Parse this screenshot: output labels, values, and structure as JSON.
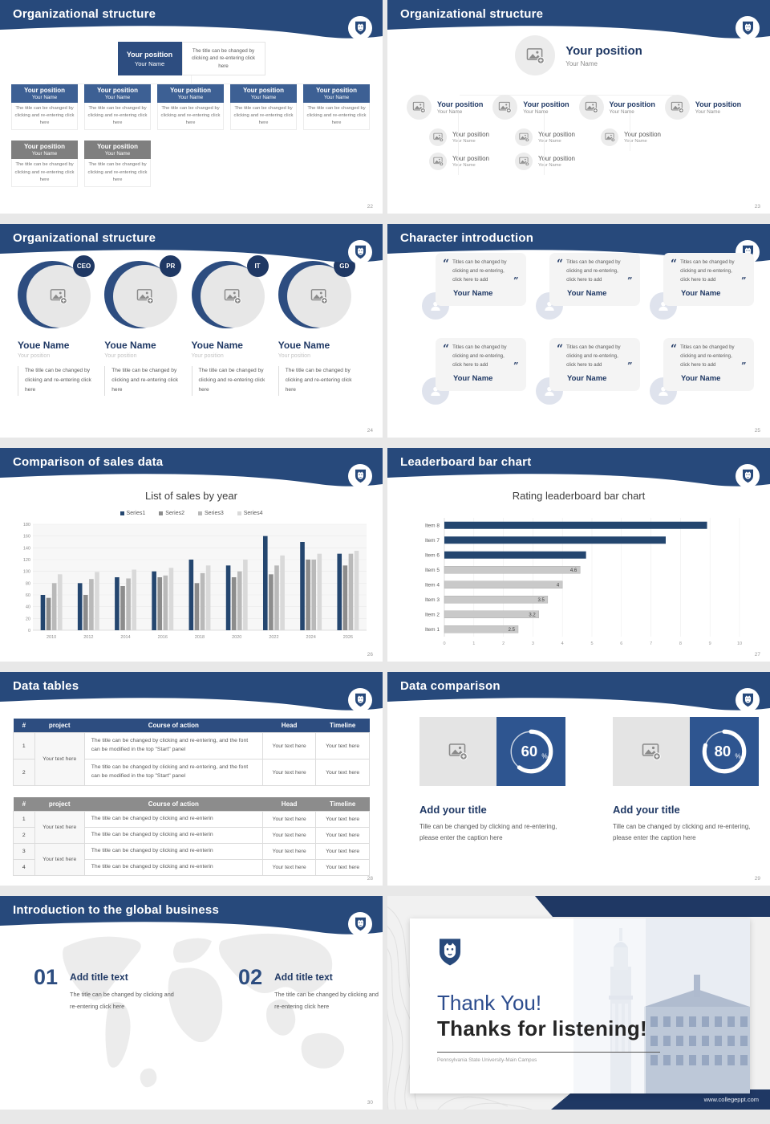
{
  "colors": {
    "header_blue": "#27497b",
    "navy": "#1f3864",
    "box_blue": "#3d6094",
    "box_blue_dark": "#2d4d80",
    "box_gray": "#7f7f7f",
    "accent_blue": "#2e5590",
    "bar_blue": "#24466f",
    "bar_gray": "#c9c9c9"
  },
  "slides": {
    "s1": {
      "title": "Organizational structure",
      "page": "22",
      "position": "Your position",
      "name": "Your Name",
      "desc": "The title can be changed by clicking and re-entering click here"
    },
    "s2": {
      "title": "Organizational structure",
      "page": "23",
      "position": "Your position",
      "name": "Your Name"
    },
    "s3": {
      "title": "Organizational structure",
      "page": "24",
      "name": "Youe Name",
      "position": "Your position",
      "desc": "The title can be changed by clicking and re-entering click here",
      "badges": [
        "CEO",
        "PR",
        "IT",
        "GD"
      ]
    },
    "s4": {
      "title": "Character introduction",
      "page": "25",
      "quote": "Titles can be changed by clicking and re-entering, click here to add",
      "name": "Your Name"
    },
    "s5": {
      "title": "Comparison of sales data",
      "page": "26"
    },
    "s6": {
      "title": "Leaderboard bar chart",
      "page": "27"
    },
    "s7": {
      "title": "Data tables",
      "page": "28",
      "headers": [
        "#",
        "project",
        "Course of action",
        "Head",
        "Timeline"
      ],
      "cell": "Your text here",
      "project_cell": "Your text here",
      "course_long": "The title can be changed by clicking and re-entering, and the font can be modified in the top \"Start\" panel",
      "course_short": "The title can be changed by clicking and re-enterin",
      "t1_nums": [
        "1",
        "2"
      ],
      "t2_nums": [
        "1",
        "2",
        "3",
        "4"
      ]
    },
    "s8": {
      "title": "Data comparison",
      "page": "29",
      "item_title": "Add your title",
      "caption": "Tille can be changed by clicking and re-entering, please enter the caption here",
      "percents": [
        {
          "value": "60",
          "unit": "%"
        },
        {
          "value": "80",
          "unit": "%"
        }
      ]
    },
    "s9": {
      "title": "Introduction to the global business",
      "page": "30",
      "steps": [
        {
          "num": "01",
          "heading": "Add title text",
          "desc": "The title can be changed by clicking and re-entering click here"
        },
        {
          "num": "02",
          "heading": "Add title text",
          "desc": "The title can be changed by clicking and re-entering click here"
        }
      ]
    },
    "s10": {
      "title_line1": "Thank You!",
      "title_line2": "Thanks for listening!",
      "subtitle": "Pennsylvania State University-Main Campus",
      "url": "www.collegeppt.com"
    }
  },
  "chart_data": [
    {
      "type": "bar",
      "slide": "s5",
      "title": "List of sales by year",
      "categories": [
        "2010",
        "2012",
        "2014",
        "2016",
        "2018",
        "2020",
        "2022",
        "2024",
        "2026"
      ],
      "series": [
        {
          "name": "Series1",
          "values": [
            60,
            80,
            90,
            100,
            120,
            110,
            160,
            150,
            130
          ]
        },
        {
          "name": "Series2",
          "values": [
            55,
            60,
            75,
            90,
            80,
            90,
            95,
            120,
            110
          ]
        },
        {
          "name": "Series3",
          "values": [
            80,
            87,
            88,
            93,
            97,
            100,
            110,
            120,
            130
          ]
        },
        {
          "name": "Series4",
          "values": [
            95,
            99,
            103,
            106,
            110,
            120,
            127,
            130,
            135
          ]
        }
      ],
      "xlabel": "",
      "ylabel": "",
      "ylim": [
        0,
        180
      ],
      "ytick": 20,
      "grid": true,
      "legend_position": "top",
      "colors": [
        "#24466f",
        "#8c8c8c",
        "#b9b9b9",
        "#d9d9d9"
      ]
    },
    {
      "type": "bar",
      "orientation": "horizontal",
      "slide": "s6",
      "title": "Rating leaderboard bar chart",
      "categories": [
        "Item 8",
        "Item 7",
        "Item 6",
        "Item 5",
        "Item 4",
        "Item 3",
        "Item 2",
        "Item 1"
      ],
      "values": [
        8.9,
        7.5,
        4.8,
        4.6,
        4,
        3.5,
        3.2,
        2.5
      ],
      "data_labels": [
        null,
        null,
        null,
        "4.6",
        "4",
        "3.5",
        "3.2",
        "2.5"
      ],
      "xlim": [
        0,
        10
      ],
      "xtick": 1,
      "grid": true,
      "bar_colors": [
        "#24466f",
        "#24466f",
        "#24466f",
        "#c9c9c9",
        "#c9c9c9",
        "#c9c9c9",
        "#c9c9c9",
        "#c9c9c9"
      ]
    }
  ]
}
